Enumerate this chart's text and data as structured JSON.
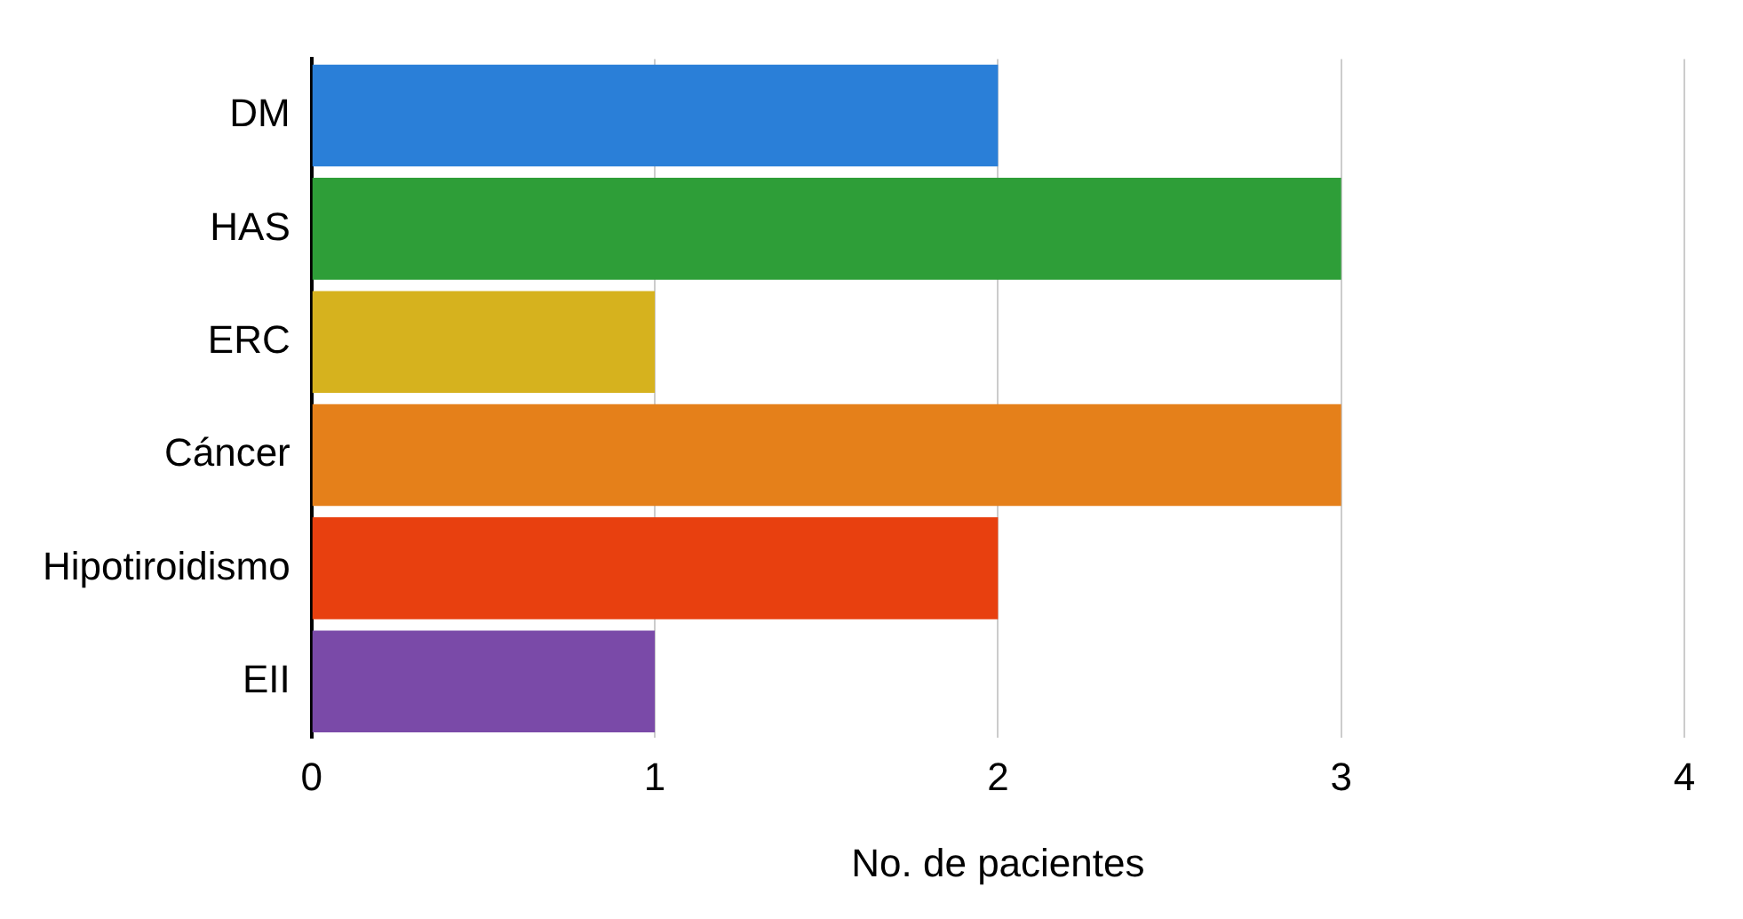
{
  "chart_data": {
    "type": "bar",
    "orientation": "horizontal",
    "xlabel": "No. de pacientes",
    "categories": [
      "DM",
      "HAS",
      "ERC",
      "Cáncer",
      "Hipotiroidismo",
      "EII"
    ],
    "values": [
      2,
      3,
      1,
      3,
      2,
      1
    ],
    "colors": [
      "#2a7fd8",
      "#2e9e38",
      "#d6b21e",
      "#e5801a",
      "#e8400f",
      "#7a4aa8"
    ],
    "xlim": [
      0,
      4
    ],
    "xticks": [
      0,
      1,
      2,
      3,
      4
    ],
    "grid": "x",
    "legend": false
  }
}
